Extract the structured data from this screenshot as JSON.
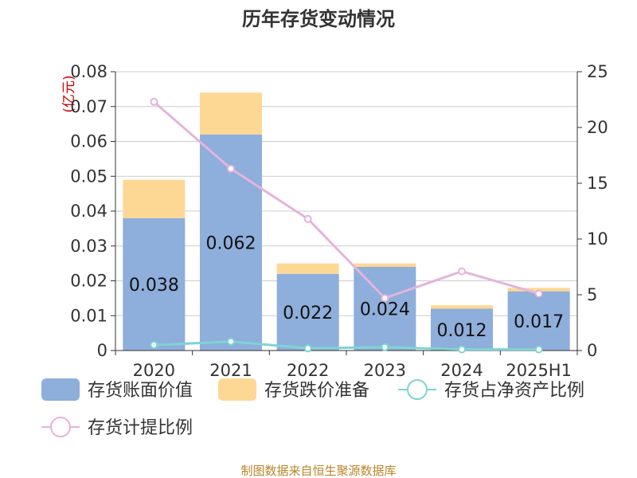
{
  "chart_data": {
    "type": "bar",
    "title": "历年存货变动情况",
    "unit_left": "(亿元)",
    "unit_right": "%",
    "categories": [
      "2020",
      "2021",
      "2022",
      "2023",
      "2024",
      "2025H1"
    ],
    "y_left": {
      "ylim": [
        0,
        0.08
      ],
      "ticks": [
        "0",
        "0.01",
        "0.02",
        "0.03",
        "0.04",
        "0.05",
        "0.06",
        "0.07",
        "0.08"
      ]
    },
    "y_right": {
      "ylim": [
        0,
        25
      ],
      "ticks": [
        "0",
        "5",
        "10",
        "15",
        "20",
        "25"
      ]
    },
    "series": [
      {
        "name": "存货账面价值",
        "type": "bar",
        "color": "#8eaedb",
        "values": [
          0.038,
          0.062,
          0.022,
          0.024,
          0.012,
          0.017
        ],
        "labels": [
          "0.038",
          "0.062",
          "0.022",
          "0.024",
          "0.012",
          "0.017"
        ]
      },
      {
        "name": "存货跌价准备",
        "type": "bar-stacked",
        "color": "#fdd895",
        "values": [
          0.011,
          0.012,
          0.003,
          0.001,
          0.001,
          0.001
        ]
      },
      {
        "name": "存货占净资产比例",
        "type": "line",
        "axis": "right",
        "color": "#7fd3d3",
        "values": [
          0.5,
          0.8,
          0.2,
          0.3,
          0.1,
          0.1
        ]
      },
      {
        "name": "存货计提比例",
        "type": "line",
        "axis": "right",
        "color": "#e4b4dc",
        "values": [
          22.3,
          16.3,
          11.8,
          4.7,
          7.1,
          5.1
        ]
      }
    ],
    "grid": true,
    "legend_position": "bottom",
    "source": "制图数据来自恒生聚源数据库"
  }
}
